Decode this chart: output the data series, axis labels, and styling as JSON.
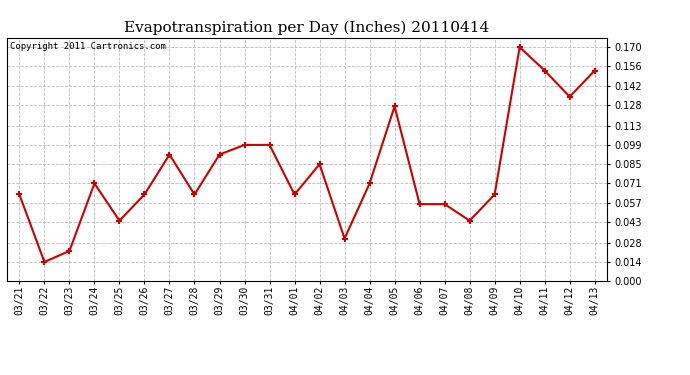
{
  "title": "Evapotranspiration per Day (Inches) 20110414",
  "copyright": "Copyright 2011 Cartronics.com",
  "dates": [
    "03/21",
    "03/22",
    "03/23",
    "03/24",
    "03/25",
    "03/26",
    "03/27",
    "03/28",
    "03/29",
    "03/30",
    "03/31",
    "04/01",
    "04/02",
    "04/03",
    "04/04",
    "04/05",
    "04/06",
    "04/07",
    "04/08",
    "04/09",
    "04/10",
    "04/11",
    "04/12",
    "04/13"
  ],
  "values": [
    0.063,
    0.014,
    0.022,
    0.071,
    0.044,
    0.063,
    0.092,
    0.063,
    0.092,
    0.099,
    0.099,
    0.063,
    0.085,
    0.031,
    0.071,
    0.127,
    0.056,
    0.056,
    0.044,
    0.063,
    0.17,
    0.153,
    0.134,
    0.153
  ],
  "line_color": "#cc0000",
  "marker": "+",
  "marker_size": 5,
  "marker_linewidth": 1.5,
  "linewidth": 1.5,
  "background_color": "#ffffff",
  "grid_color": "#bbbbbb",
  "ylim": [
    0.0,
    0.177
  ],
  "yticks": [
    0.0,
    0.014,
    0.028,
    0.043,
    0.057,
    0.071,
    0.085,
    0.099,
    0.113,
    0.128,
    0.142,
    0.156,
    0.17
  ],
  "title_fontsize": 11,
  "tick_fontsize": 7,
  "copyright_fontsize": 6.5
}
